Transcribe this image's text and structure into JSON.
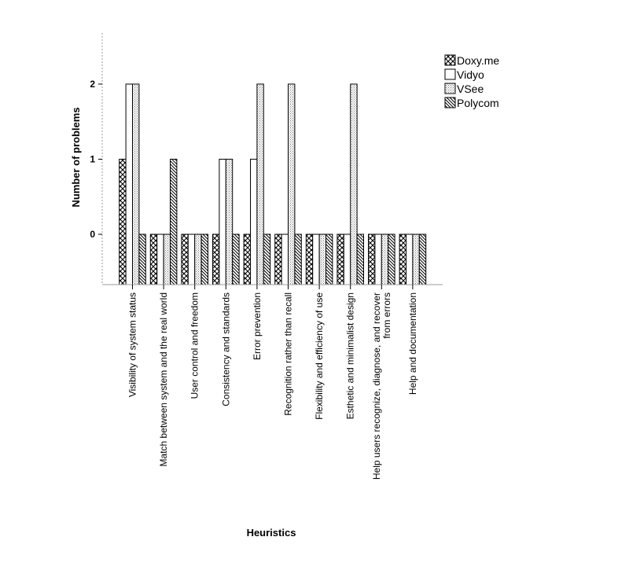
{
  "chart_data": {
    "type": "bar",
    "title": "",
    "xlabel": "Heuristics",
    "ylabel": "Number of problems",
    "ylim": [
      -0.67,
      2.68
    ],
    "yticks": [
      0,
      1,
      2
    ],
    "legend_position": "top-right",
    "categories": [
      [
        "Visibility of system status"
      ],
      [
        "Match between system and the real world"
      ],
      [
        "User control and freedom"
      ],
      [
        "Consistency and standards"
      ],
      [
        "Error prevention"
      ],
      [
        "Recognition rather than recall"
      ],
      [
        "Flexibility and efficiency of use"
      ],
      [
        "Esthetic and minimalist design"
      ],
      [
        "Help users recognize, diagnose, and recover",
        "from errors"
      ],
      [
        "Help and documentation"
      ]
    ],
    "series": [
      {
        "name": "Doxy.me",
        "pattern": "crosshatch",
        "values": [
          1,
          0,
          0,
          0,
          0,
          0,
          0,
          0,
          0,
          0
        ]
      },
      {
        "name": "Vidyo",
        "pattern": "empty",
        "values": [
          2,
          0,
          0,
          1,
          1,
          0,
          0,
          0,
          0,
          0
        ]
      },
      {
        "name": "VSee",
        "pattern": "dots",
        "values": [
          2,
          0,
          0,
          1,
          2,
          2,
          0,
          2,
          0,
          0
        ]
      },
      {
        "name": "Polycom",
        "pattern": "diagonal",
        "values": [
          0,
          1,
          0,
          0,
          0,
          0,
          0,
          0,
          0,
          0
        ]
      }
    ]
  }
}
